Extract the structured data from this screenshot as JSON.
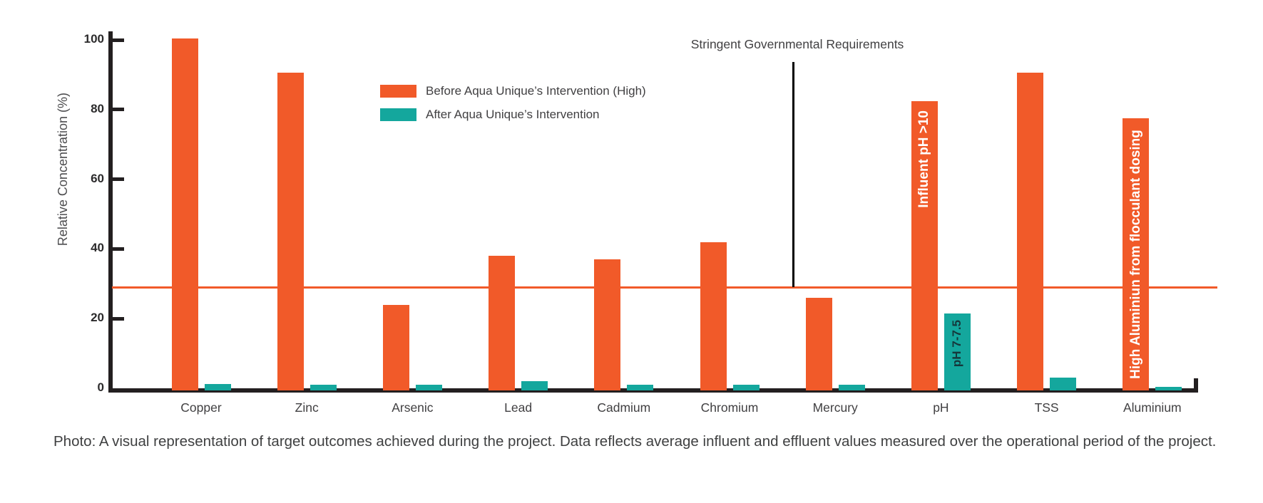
{
  "page": {
    "caption": "Photo: A visual representation of target outcomes achieved during the project. Data reflects average influent and effluent values measured over the operational period of the project."
  },
  "chart_data": {
    "type": "bar",
    "title": "",
    "xlabel": "",
    "ylabel": "Relative Concentration (%)",
    "ylim": [
      0,
      103
    ],
    "yticks": [
      0,
      20,
      40,
      60,
      80,
      100
    ],
    "grid": "off",
    "legend_position": "top-left-inside",
    "categories": [
      "Copper",
      "Zinc",
      "Arsenic",
      "Lead",
      "Cadmium",
      "Chromium",
      "Mercury",
      "pH",
      "TSS",
      "Aluminium"
    ],
    "series": [
      {
        "name": "Before Aqua Unique’s Intervention (High)",
        "color": "#F15A29",
        "values": [
          100.5,
          90.5,
          24,
          38,
          37,
          42,
          26,
          82.5,
          90.5,
          77.5
        ]
      },
      {
        "name": "After Aqua Unique’s Intervention",
        "color": "#14A79D",
        "values": [
          1.2,
          1,
          1,
          2,
          1,
          1,
          1,
          21.5,
          3,
          0.5
        ]
      }
    ],
    "threshold": {
      "value": 29,
      "label": "Stringent Governmental Requirements",
      "line_color": "#F15A29",
      "pointer_color": "#000000"
    },
    "annotations": [
      {
        "category": "pH",
        "series_index": 0,
        "text": "Influent pH >10",
        "text_color": "#FFFFFF",
        "align": "top",
        "font_size": 19
      },
      {
        "category": "pH",
        "series_index": 1,
        "text": "pH 7-7.5",
        "text_color": "#15383c",
        "align": "top",
        "font_size": 17
      },
      {
        "category": "Aluminium",
        "series_index": 0,
        "text": "High Aluminiun from flocculant dosing",
        "text_color": "#FFFFFF",
        "align": "center",
        "font_size": 19
      }
    ],
    "axis_color": "#231F20"
  }
}
